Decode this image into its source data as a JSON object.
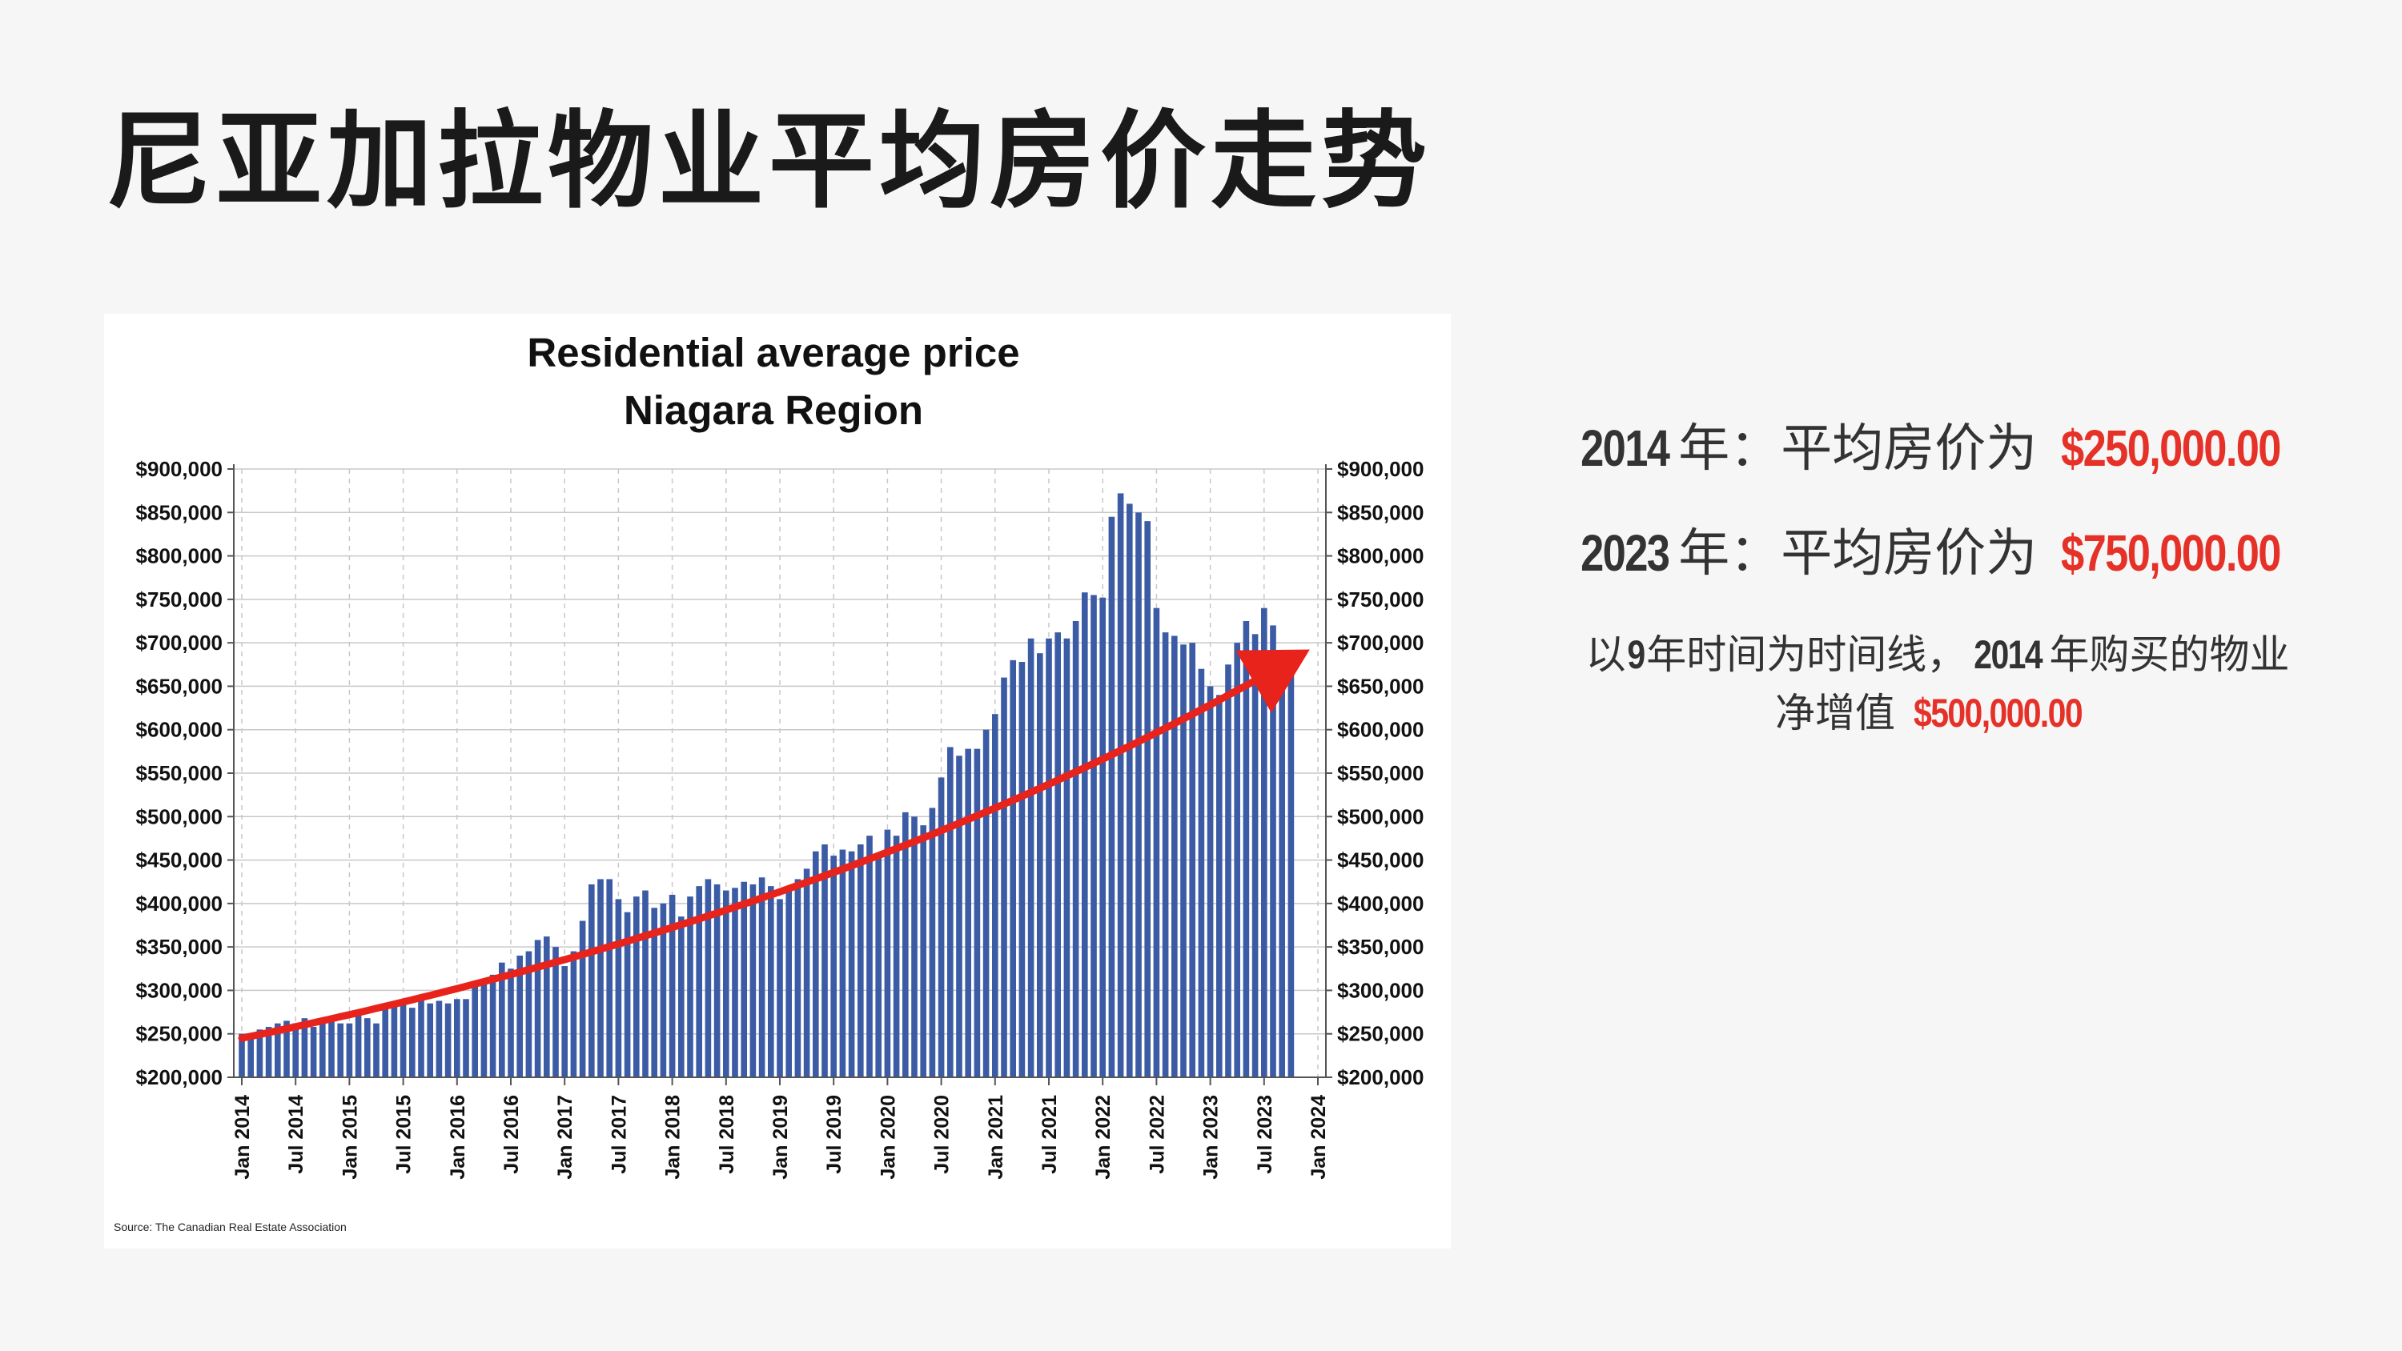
{
  "slide_title": "尼亚加拉物业平均房价走势",
  "facts": {
    "line1": {
      "year": "2014",
      "suffix": "年：平均房价为",
      "price": "$250,000.00"
    },
    "line2": {
      "year": "2023",
      "suffix": "年：平均房价为",
      "price": "$750,000.00"
    },
    "line3": {
      "p1": "以",
      "years": "9",
      "p2": "年时间为时间线，",
      "year": "2014",
      "p3": "年购买的物业",
      "p4": "净增值",
      "gain": "$500,000.00"
    }
  },
  "colors": {
    "bar": "#3b5ba5",
    "trend": "#e8231b",
    "accent_red": "#e53127"
  },
  "chart_data": {
    "type": "bar",
    "title": "Residential average price",
    "subtitle": "Niagara Region",
    "source": "Source: The Canadian Real Estate Association",
    "ylim": [
      200000,
      900000
    ],
    "yticks": [
      "$200,000",
      "$250,000",
      "$300,000",
      "$350,000",
      "$400,000",
      "$450,000",
      "$500,000",
      "$550,000",
      "$600,000",
      "$650,000",
      "$700,000",
      "$750,000",
      "$800,000",
      "$850,000",
      "$900,000"
    ],
    "xticks": [
      "Jan 2014",
      "Jul 2014",
      "Jan 2015",
      "Jul 2015",
      "Jan 2016",
      "Jul 2016",
      "Jan 2017",
      "Jul 2017",
      "Jan 2018",
      "Jul 2018",
      "Jan 2019",
      "Jul 2019",
      "Jan 2020",
      "Jul 2020",
      "Jan 2021",
      "Jul 2021",
      "Jan 2022",
      "Jul 2022",
      "Jan 2023",
      "Jul 2023",
      "Jan 2024"
    ],
    "grid": true,
    "start": "Jan 2014",
    "end": "Oct 2023",
    "values": [
      250000,
      248000,
      255000,
      258000,
      262000,
      265000,
      262000,
      268000,
      258000,
      262000,
      265000,
      262000,
      262000,
      275000,
      268000,
      262000,
      285000,
      282000,
      288000,
      280000,
      292000,
      285000,
      288000,
      285000,
      290000,
      290000,
      305000,
      312000,
      318000,
      332000,
      325000,
      340000,
      345000,
      358000,
      362000,
      350000,
      328000,
      345000,
      380000,
      422000,
      428000,
      428000,
      405000,
      390000,
      408000,
      415000,
      395000,
      400000,
      410000,
      385000,
      408000,
      420000,
      428000,
      422000,
      415000,
      418000,
      425000,
      422000,
      430000,
      420000,
      405000,
      418000,
      428000,
      440000,
      460000,
      468000,
      455000,
      462000,
      460000,
      468000,
      478000,
      458000,
      485000,
      478000,
      505000,
      500000,
      490000,
      510000,
      545000,
      580000,
      570000,
      578000,
      578000,
      600000,
      618000,
      660000,
      680000,
      678000,
      705000,
      688000,
      705000,
      712000,
      705000,
      725000,
      758000,
      755000,
      752000,
      845000,
      872000,
      860000,
      850000,
      840000,
      740000,
      712000,
      708000,
      698000,
      700000,
      670000,
      650000,
      640000,
      675000,
      700000,
      725000,
      710000,
      740000,
      720000,
      690000,
      680000
    ],
    "trend": {
      "from": 245000,
      "to": 680000
    }
  }
}
